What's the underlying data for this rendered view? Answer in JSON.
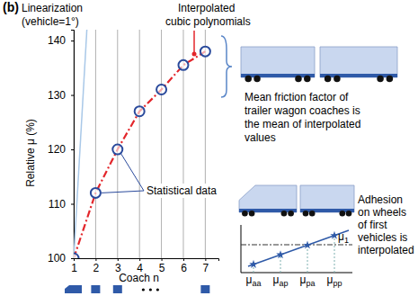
{
  "chart_data": {
    "type": "line",
    "title": "(b)",
    "x_label": "Coach n",
    "y_label": "Relative μ (%)",
    "x": [
      1,
      2,
      3,
      4,
      5,
      6,
      7
    ],
    "xlim": [
      1,
      7.6
    ],
    "xticks": [
      1,
      2,
      3,
      4,
      5,
      6,
      7
    ],
    "ylim": [
      100,
      142
    ],
    "yticks": [
      100,
      110,
      120,
      130,
      140
    ],
    "grid": "x",
    "series": [
      {
        "type": "scatter",
        "color": "#2a4a9c",
        "marker": "circle",
        "values": [
          100,
          112,
          120,
          127,
          131,
          135.5,
          138
        ]
      },
      {
        "type": "line",
        "color": "#e3262b",
        "line_style": "dashdot",
        "values": [
          100,
          112,
          120,
          127,
          131,
          135.5,
          138
        ]
      },
      {
        "type": "line",
        "color": "#a9c8e8",
        "line_style": "solid",
        "x": [
          1,
          1.6
        ],
        "values": [
          100,
          142
        ]
      }
    ],
    "annotations": [
      [
        "Linearization",
        "(vehicle=1°)"
      ],
      [
        "Interpolated",
        "cubic polynomials"
      ],
      [
        "Statistical data"
      ],
      [
        "Mean friction factor of",
        "trailer wagon coaches is",
        "the mean of interpolated",
        "values"
      ],
      [
        "Adhesion",
        "on wheels",
        "of first",
        "vehicles is",
        "interpolated"
      ]
    ],
    "inset_labels": [
      "μaa",
      "μap",
      "μpa",
      "μpp",
      "μ1"
    ]
  }
}
